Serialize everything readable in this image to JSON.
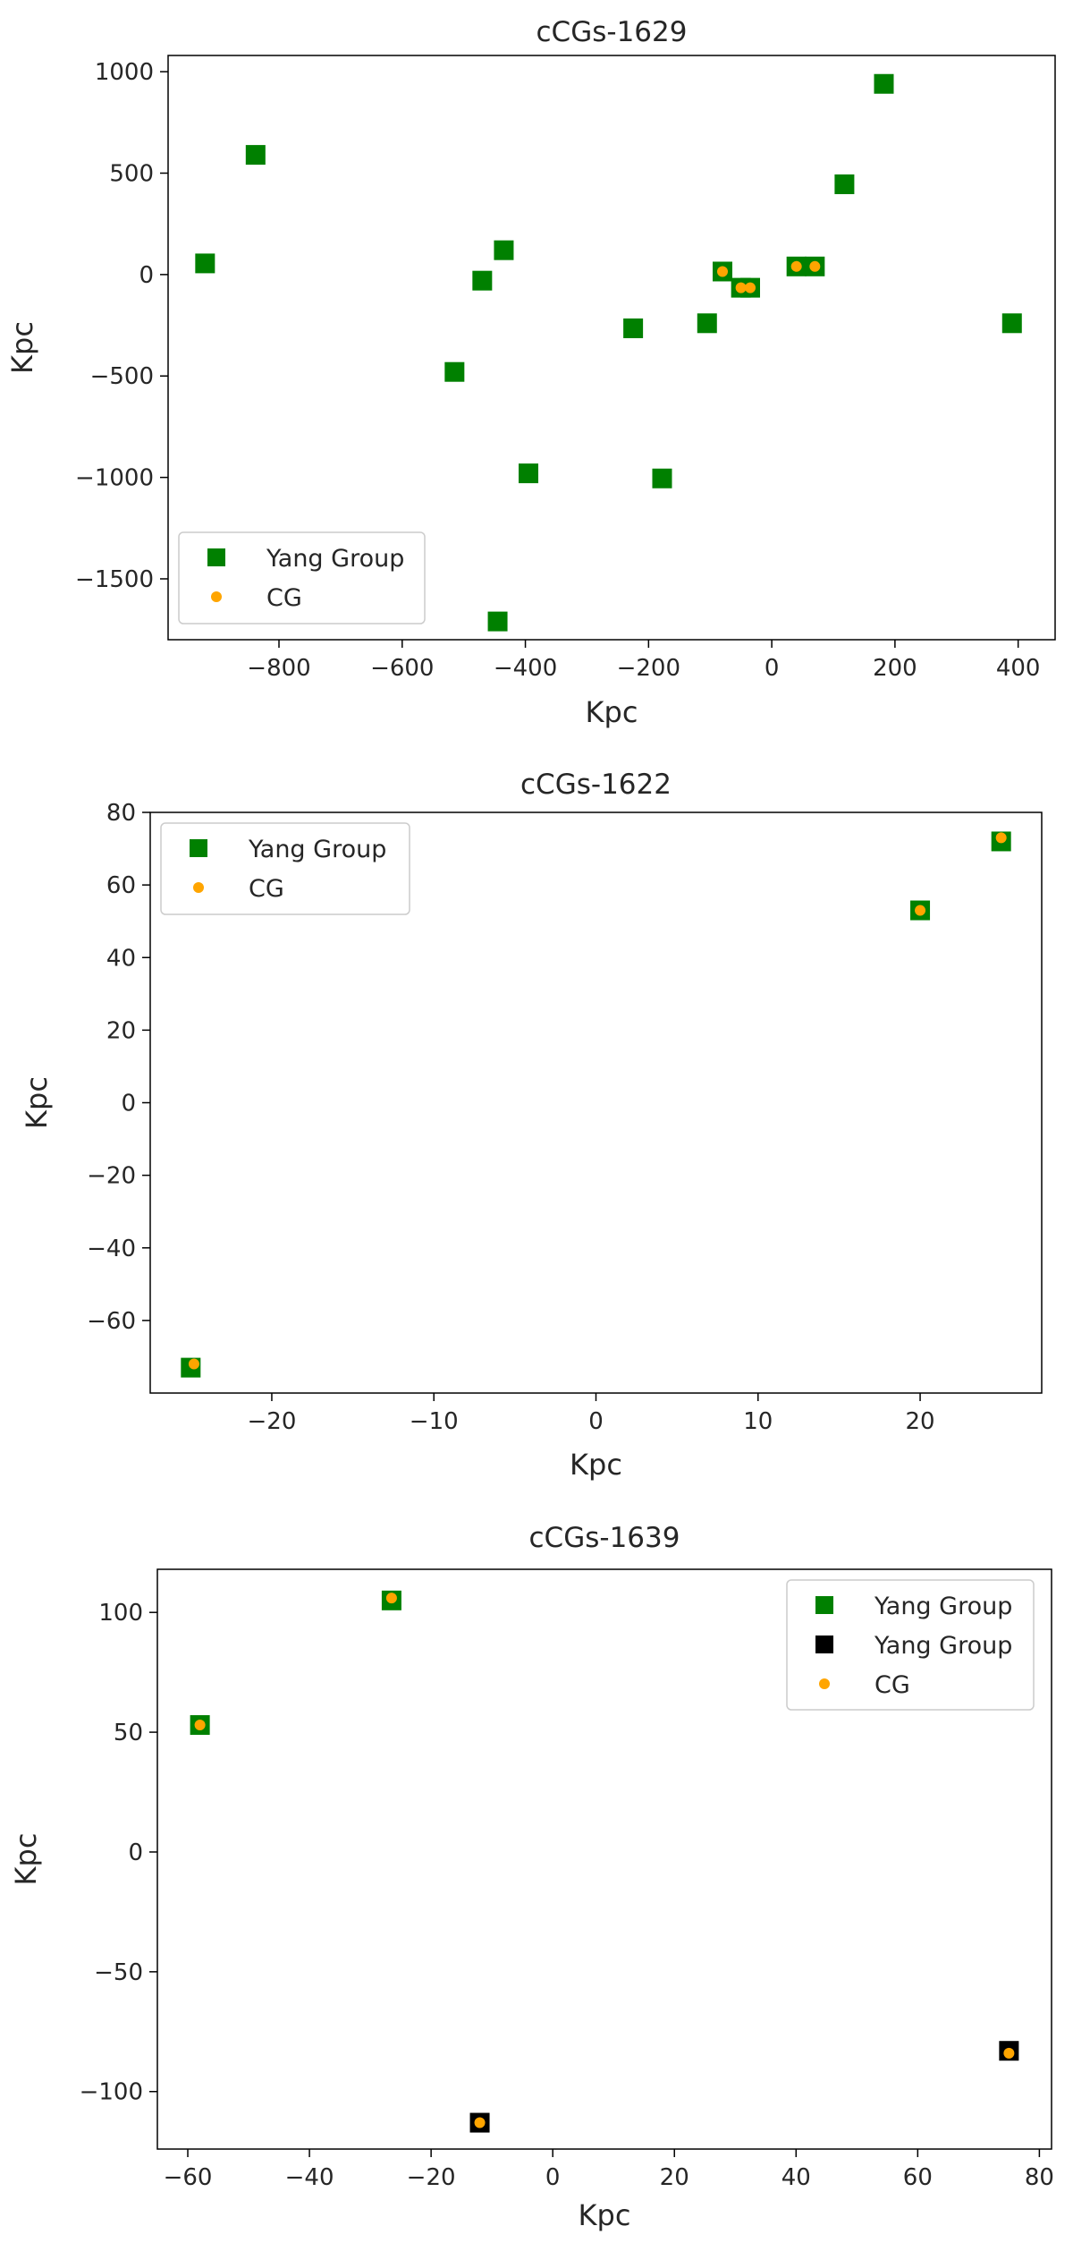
{
  "chart_data": [
    {
      "type": "scatter",
      "title": "cCGs-1629",
      "xlabel": "Kpc",
      "ylabel": "Kpc",
      "xlim": [
        -980,
        460
      ],
      "ylim": [
        -1800,
        1080
      ],
      "xticks": [
        -800,
        -600,
        -400,
        -200,
        0,
        200,
        400
      ],
      "yticks": [
        -1500,
        -1000,
        -500,
        0,
        500,
        1000
      ],
      "legend_position": "lower-left",
      "series": [
        {
          "name": "Yang Group",
          "marker": "square",
          "color": "#008000",
          "points": [
            [
              -920,
              55
            ],
            [
              -838,
              590
            ],
            [
              -470,
              -30
            ],
            [
              -435,
              120
            ],
            [
              -515,
              -480
            ],
            [
              -395,
              -980
            ],
            [
              -445,
              -1710
            ],
            [
              -225,
              -265
            ],
            [
              -178,
              -1005
            ],
            [
              -105,
              -240
            ],
            [
              -80,
              15
            ],
            [
              -50,
              -65
            ],
            [
              -35,
              -65
            ],
            [
              40,
              40
            ],
            [
              70,
              40
            ],
            [
              118,
              445
            ],
            [
              182,
              940
            ],
            [
              390,
              -240
            ]
          ]
        },
        {
          "name": "CG",
          "marker": "circle",
          "color": "#ffa500",
          "points": [
            [
              -80,
              15
            ],
            [
              -50,
              -65
            ],
            [
              -35,
              -65
            ],
            [
              40,
              40
            ],
            [
              70,
              40
            ]
          ]
        }
      ]
    },
    {
      "type": "scatter",
      "title": "cCGs-1622",
      "xlabel": "Kpc",
      "ylabel": "Kpc",
      "xlim": [
        -27.5,
        27.5
      ],
      "ylim": [
        -80,
        80
      ],
      "xticks": [
        -20,
        -10,
        0,
        10,
        20
      ],
      "yticks": [
        -60,
        -40,
        -20,
        0,
        20,
        40,
        60,
        80
      ],
      "legend_position": "upper-left",
      "series": [
        {
          "name": "Yang Group",
          "marker": "square",
          "color": "#008000",
          "points": [
            [
              -25,
              -73
            ],
            [
              20,
              53
            ],
            [
              25,
              72
            ]
          ]
        },
        {
          "name": "CG",
          "marker": "circle",
          "color": "#ffa500",
          "points": [
            [
              -24.8,
              -72
            ],
            [
              20,
              53
            ],
            [
              25,
              73
            ]
          ]
        }
      ]
    },
    {
      "type": "scatter",
      "title": "cCGs-1639",
      "xlabel": "Kpc",
      "ylabel": "Kpc",
      "xlim": [
        -65,
        82
      ],
      "ylim": [
        -124,
        118
      ],
      "xticks": [
        -60,
        -40,
        -20,
        0,
        20,
        40,
        60,
        80
      ],
      "yticks": [
        -100,
        -50,
        0,
        50,
        100
      ],
      "legend_position": "upper-right",
      "series": [
        {
          "name": "Yang Group",
          "marker": "square",
          "color": "#008000",
          "points": [
            [
              -58,
              53
            ],
            [
              -26.5,
              105
            ]
          ]
        },
        {
          "name": "Yang Group",
          "marker": "square",
          "color": "#000000",
          "points": [
            [
              -12,
              -113
            ],
            [
              75,
              -83
            ]
          ]
        },
        {
          "name": "CG",
          "marker": "circle",
          "color": "#ffa500",
          "points": [
            [
              -58,
              53
            ],
            [
              -26.5,
              106
            ],
            [
              -12,
              -113
            ],
            [
              75,
              -84
            ]
          ]
        }
      ]
    }
  ]
}
